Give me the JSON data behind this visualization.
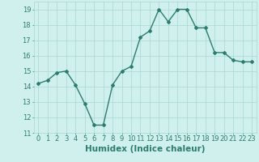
{
  "x": [
    0,
    1,
    2,
    3,
    4,
    5,
    6,
    7,
    8,
    9,
    10,
    11,
    12,
    13,
    14,
    15,
    16,
    17,
    18,
    19,
    20,
    21,
    22,
    23
  ],
  "y": [
    14.2,
    14.4,
    14.9,
    15.0,
    14.1,
    12.9,
    11.5,
    11.5,
    14.1,
    15.0,
    15.3,
    17.2,
    17.6,
    19.0,
    18.2,
    19.0,
    19.0,
    17.8,
    17.8,
    16.2,
    16.2,
    15.7,
    15.6,
    15.6
  ],
  "line_color": "#2d7d6e",
  "marker": "D",
  "marker_size": 2.0,
  "bg_color": "#cff0ec",
  "grid_color": "#a8d8d0",
  "xlabel": "Humidex (Indice chaleur)",
  "ylabel": "",
  "title": "",
  "ylim": [
    11,
    19.5
  ],
  "yticks": [
    11,
    12,
    13,
    14,
    15,
    16,
    17,
    18,
    19
  ],
  "xticks": [
    0,
    1,
    2,
    3,
    4,
    5,
    6,
    7,
    8,
    9,
    10,
    11,
    12,
    13,
    14,
    15,
    16,
    17,
    18,
    19,
    20,
    21,
    22,
    23
  ],
  "tick_fontsize": 6.0,
  "xlabel_fontsize": 7.5,
  "linewidth": 1.0
}
